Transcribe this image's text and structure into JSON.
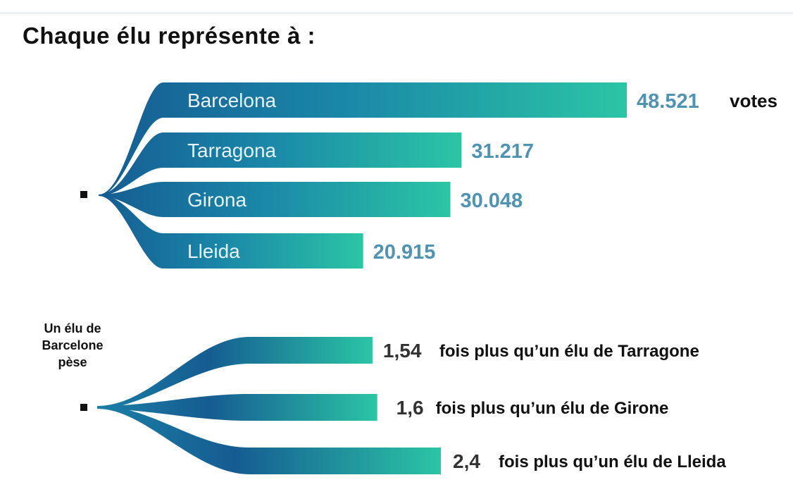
{
  "title": "Chaque élu représente à :",
  "secondary_label": [
    "Un élu de",
    "Barcelone",
    "pèse"
  ],
  "unit": "votes",
  "colors": {
    "bar_dark": "#155c92",
    "bar_light": "#2bc5a5",
    "value_text": "#4f93b3"
  },
  "chart_data": [
    {
      "type": "bar",
      "orientation": "horizontal",
      "categories": [
        "Barcelona",
        "Tarragona",
        "Girona",
        "Lleida"
      ],
      "values": [
        48521,
        31217,
        30048,
        20915
      ],
      "value_labels": [
        "48.521",
        "31.217",
        "30.048",
        "20.915"
      ],
      "unit": "votes"
    },
    {
      "type": "bar",
      "orientation": "horizontal",
      "categories": [
        "Tarragone",
        "Girone",
        "Lleida"
      ],
      "values": [
        1.54,
        1.6,
        2.4
      ],
      "value_labels": [
        "1,54",
        "1,6",
        "2,4"
      ],
      "texts": [
        "fois plus qu’un élu de Tarragone",
        "fois plus qu’un élu de Girone",
        "fois plus qu’un élu de Lleida"
      ]
    }
  ]
}
